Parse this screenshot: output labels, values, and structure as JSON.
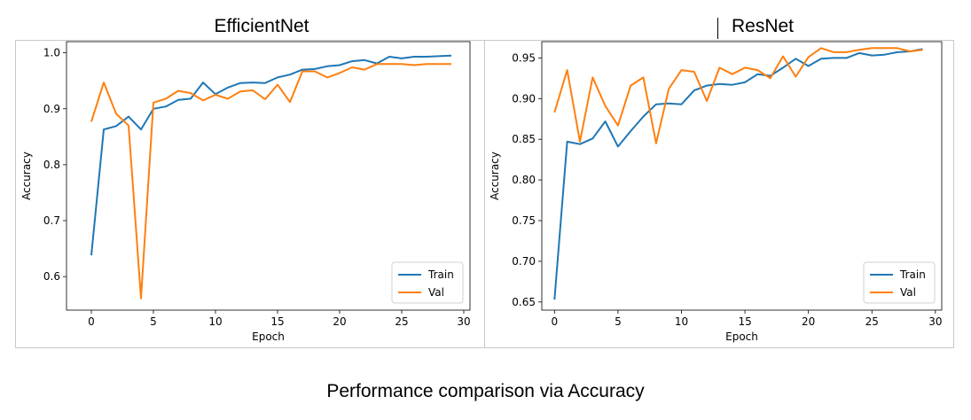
{
  "titles": {
    "left": "EfficientNet",
    "right": "ResNet"
  },
  "caption": "Performance comparison via Accuracy",
  "colors": {
    "train": "#1f77b4",
    "val": "#ff7f0e"
  },
  "chart_data": [
    {
      "type": "line",
      "title": "EfficientNet",
      "xlabel": "Epoch",
      "ylabel": "Accuracy",
      "xlim": [
        -2,
        30.5
      ],
      "ylim": [
        0.54,
        1.02
      ],
      "xticks": [
        0,
        5,
        10,
        15,
        20,
        25,
        30
      ],
      "yticks": [
        0.6,
        0.7,
        0.8,
        0.9,
        1.0
      ],
      "ytick_labels": [
        "0.6",
        "0.7",
        "0.8",
        "0.9",
        "1.0"
      ],
      "legend": "lower-right",
      "grid": false,
      "x": [
        0,
        1,
        2,
        3,
        4,
        5,
        6,
        7,
        8,
        9,
        10,
        11,
        12,
        13,
        14,
        15,
        16,
        17,
        18,
        19,
        20,
        21,
        22,
        23,
        24,
        25,
        26,
        27,
        28,
        29
      ],
      "series": [
        {
          "name": "Train",
          "color": "#1f77b4",
          "values": [
            0.638,
            0.863,
            0.869,
            0.886,
            0.863,
            0.9,
            0.904,
            0.916,
            0.918,
            0.947,
            0.926,
            0.938,
            0.946,
            0.947,
            0.946,
            0.956,
            0.961,
            0.97,
            0.971,
            0.976,
            0.978,
            0.985,
            0.987,
            0.981,
            0.993,
            0.99,
            0.993,
            0.993,
            0.994,
            0.995
          ]
        },
        {
          "name": "Val",
          "color": "#ff7f0e",
          "values": [
            0.877,
            0.947,
            0.891,
            0.87,
            0.561,
            0.911,
            0.918,
            0.932,
            0.928,
            0.915,
            0.925,
            0.918,
            0.931,
            0.933,
            0.917,
            0.943,
            0.912,
            0.967,
            0.967,
            0.956,
            0.964,
            0.974,
            0.97,
            0.98,
            0.98,
            0.98,
            0.978,
            0.98,
            0.98,
            0.98
          ]
        }
      ]
    },
    {
      "type": "line",
      "title": "ResNet",
      "xlabel": "Epoch",
      "ylabel": "Accuracy",
      "xlim": [
        -1,
        30.5
      ],
      "ylim": [
        0.64,
        0.97
      ],
      "xticks": [
        0,
        5,
        10,
        15,
        20,
        25,
        30
      ],
      "yticks": [
        0.65,
        0.7,
        0.75,
        0.8,
        0.85,
        0.9,
        0.95
      ],
      "ytick_labels": [
        "0.65",
        "0.70",
        "0.75",
        "0.80",
        "0.85",
        "0.90",
        "0.95"
      ],
      "legend": "lower-right",
      "grid": false,
      "x": [
        0,
        1,
        2,
        3,
        4,
        5,
        6,
        7,
        8,
        9,
        10,
        11,
        12,
        13,
        14,
        15,
        16,
        17,
        18,
        19,
        20,
        21,
        22,
        23,
        24,
        25,
        26,
        27,
        28,
        29
      ],
      "series": [
        {
          "name": "Train",
          "color": "#1f77b4",
          "values": [
            0.653,
            0.847,
            0.844,
            0.851,
            0.872,
            0.841,
            0.86,
            0.878,
            0.893,
            0.894,
            0.893,
            0.91,
            0.916,
            0.918,
            0.917,
            0.92,
            0.93,
            0.928,
            0.938,
            0.949,
            0.94,
            0.949,
            0.95,
            0.95,
            0.956,
            0.953,
            0.954,
            0.957,
            0.958,
            0.961
          ]
        },
        {
          "name": "Val",
          "color": "#ff7f0e",
          "values": [
            0.883,
            0.935,
            0.847,
            0.926,
            0.891,
            0.867,
            0.916,
            0.926,
            0.845,
            0.912,
            0.935,
            0.933,
            0.897,
            0.938,
            0.93,
            0.938,
            0.935,
            0.925,
            0.952,
            0.927,
            0.951,
            0.962,
            0.957,
            0.957,
            0.96,
            0.962,
            0.962,
            0.962,
            0.958,
            0.96
          ]
        }
      ]
    }
  ]
}
